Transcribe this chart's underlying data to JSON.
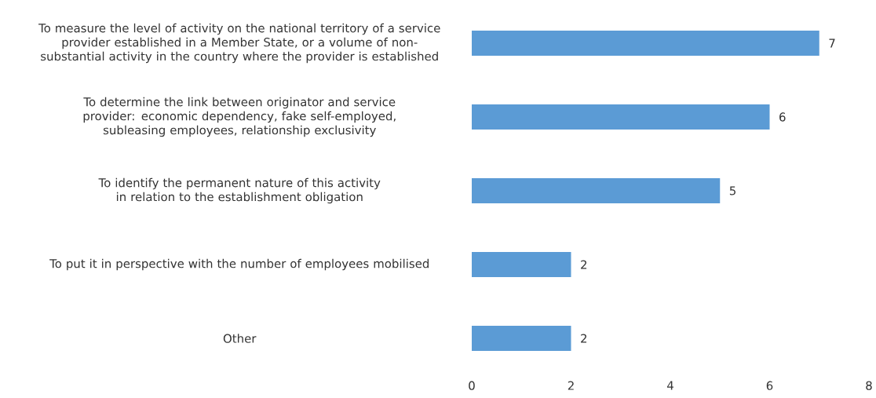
{
  "chart_data": {
    "type": "bar",
    "orientation": "horizontal",
    "categories": [
      "To measure the level of activity on the national territory of a service provider established in a Member State, or a volume of non-substantial activity in the country where the provider is established",
      "To determine the link between originator and service provider: economic dependency, fake self-employed, subleasing employees, relationship exclusivity",
      "To identify the permanent nature of this activity in relation to the establishment obligation",
      "To put it in perspective with the number of employees mobilised",
      "Other"
    ],
    "values": [
      7,
      6,
      5,
      2,
      2
    ],
    "color": "#5b9bd5",
    "xlim": [
      0,
      8
    ],
    "xticks": [
      0,
      2,
      4,
      6,
      8
    ],
    "data_labels": true
  }
}
